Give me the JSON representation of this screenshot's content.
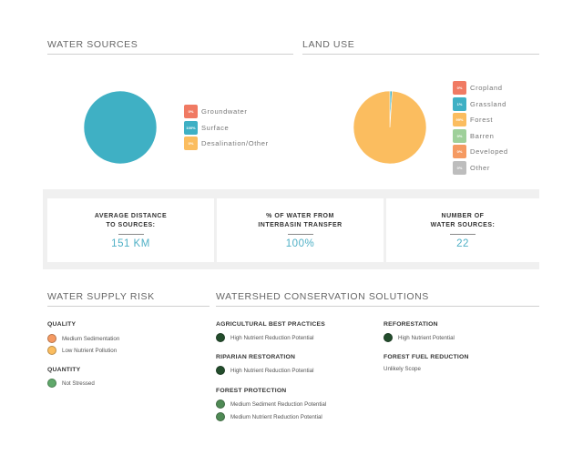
{
  "water_sources": {
    "title": "WATER SOURCES",
    "legend": [
      {
        "pct": "0%",
        "label": "Groundwater",
        "color": "#f07a63"
      },
      {
        "pct": "100%",
        "label": "Surface",
        "color": "#3fb0c4"
      },
      {
        "pct": "0%",
        "label": "Desalination/Other",
        "color": "#fbbd5f"
      }
    ]
  },
  "land_use": {
    "title": "LAND USE",
    "legend": [
      {
        "pct": "0%",
        "label": "Cropland",
        "color": "#f07a63"
      },
      {
        "pct": "1%",
        "label": "Grassland",
        "color": "#3fb0c4"
      },
      {
        "pct": "99%",
        "label": "Forest",
        "color": "#fbbd5f"
      },
      {
        "pct": "0%",
        "label": "Barren",
        "color": "#9fd09a"
      },
      {
        "pct": "0%",
        "label": "Developed",
        "color": "#f59a62"
      },
      {
        "pct": "0%",
        "label": "Other",
        "color": "#bdbdbd"
      }
    ]
  },
  "chart_data": [
    {
      "type": "pie",
      "categories": [
        "Groundwater",
        "Surface",
        "Desalination/Other"
      ],
      "values": [
        0,
        100,
        0
      ],
      "colors": [
        "#f07a63",
        "#3fb0c4",
        "#fbbd5f"
      ],
      "title": "WATER SOURCES"
    },
    {
      "type": "pie",
      "categories": [
        "Cropland",
        "Grassland",
        "Forest",
        "Barren",
        "Developed",
        "Other"
      ],
      "values": [
        0,
        1,
        99,
        0,
        0,
        0
      ],
      "colors": [
        "#f07a63",
        "#3fb0c4",
        "#fbbd5f",
        "#9fd09a",
        "#f59a62",
        "#bdbdbd"
      ],
      "title": "LAND USE"
    }
  ],
  "stats": [
    {
      "title_line1": "AVERAGE DISTANCE",
      "title_line2": "TO SOURCES:",
      "value": "151 KM"
    },
    {
      "title_line1": "% OF WATER FROM",
      "title_line2": "INTERBASIN TRANSFER",
      "value": "100%"
    },
    {
      "title_line1": "NUMBER OF",
      "title_line2": "WATER SOURCES:",
      "value": "22"
    }
  ],
  "risk": {
    "title": "WATER SUPPLY RISK",
    "quality_label": "QUALITY",
    "quality_items": [
      {
        "label": "Medium Sedimentation",
        "color": "#f59a62"
      },
      {
        "label": "Low Nutrient Pollution",
        "color": "#fbbd5f"
      }
    ],
    "quantity_label": "QUANTITY",
    "quantity_items": [
      {
        "label": "Not Stressed",
        "color": "#5fa86a"
      }
    ]
  },
  "solutions": {
    "title": "WATERSHED CONSERVATION SOLUTIONS",
    "agri_label": "AGRICULTURAL BEST PRACTICES",
    "agri_item": {
      "label": "High Nutrient Reduction Potential",
      "color": "#234d2c"
    },
    "riparian_label": "RIPARIAN RESTORATION",
    "riparian_item": {
      "label": "High Nutrient Reduction Potential",
      "color": "#234d2c"
    },
    "forest_label": "FOREST PROTECTION",
    "forest_items": [
      {
        "label": "Medium Sediment Reduction Potential",
        "color": "#4f8a55"
      },
      {
        "label": "Medium Nutrient Reduction Potential",
        "color": "#4f8a55"
      }
    ],
    "reforest_label": "REFORESTATION",
    "reforest_item": {
      "label": "High Nutrient Potential",
      "color": "#234d2c"
    },
    "fuel_label": "FOREST FUEL REDUCTION",
    "fuel_note": "Unlikely Scope"
  }
}
